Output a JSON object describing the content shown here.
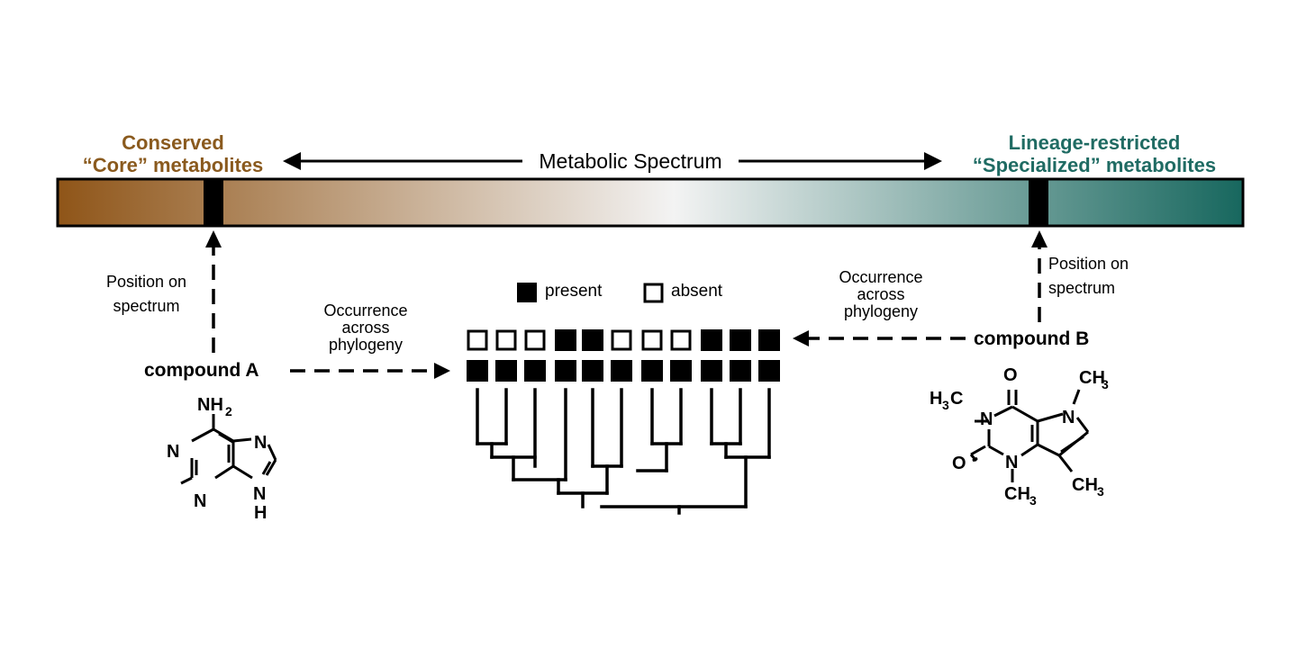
{
  "header": {
    "left_title_line1": "Conserved",
    "left_title_line2": "“Core” metabolites",
    "right_title_line1": "Lineage-restricted",
    "right_title_line2": "“Specialized” metabolites",
    "spectrum_label": "Metabolic Spectrum"
  },
  "colors": {
    "core": "#8a5a1e",
    "specialized": "#1f6b63",
    "gradient_start": "#8f5518",
    "gradient_mid": "#f3f3f3",
    "gradient_end": "#17675e"
  },
  "labels": {
    "position_left_1": "Position on",
    "position_left_2": "spectrum",
    "position_right_1": "Position on",
    "position_right_2": "spectrum",
    "occurrence_left": [
      "Occurrence",
      "across",
      "phylogeny"
    ],
    "occurrence_right": [
      "Occurrence",
      "across",
      "phylogeny"
    ],
    "compound_a": "compound A",
    "compound_b": "compound B"
  },
  "legend": {
    "present": "present",
    "absent": "absent"
  },
  "presence": {
    "compound_b_row": [
      false,
      false,
      false,
      true,
      true,
      false,
      false,
      false,
      true,
      true,
      true
    ],
    "compound_a_row": [
      true,
      true,
      true,
      true,
      true,
      true,
      true,
      true,
      true,
      true,
      true
    ]
  },
  "molecule_a": {
    "atoms": [
      "NH",
      "2",
      "N",
      "N",
      "N",
      "N",
      "H"
    ]
  },
  "molecule_b": {
    "atoms": [
      "O",
      "CH",
      "3",
      "H",
      "3",
      "C",
      "N",
      "N",
      "O",
      "N",
      "CH",
      "3",
      "CH",
      "3"
    ]
  }
}
